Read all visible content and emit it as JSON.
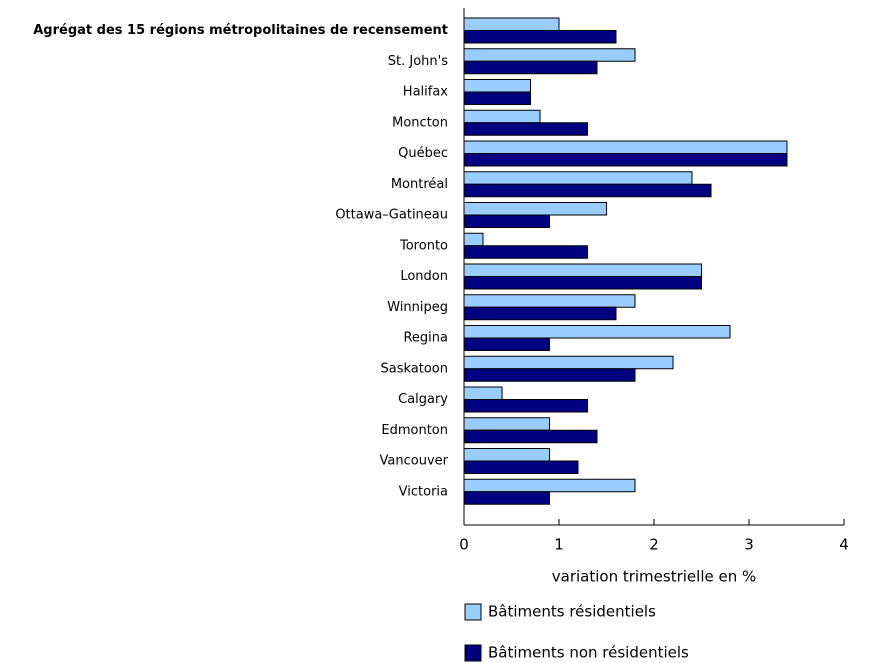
{
  "chart_data": {
    "type": "bar",
    "orientation": "horizontal",
    "x_label": "variation trimestrielle en %",
    "categories": [
      "Agrégat des 15 régions métropolitaines de recensement",
      "St. John's",
      "Halifax",
      "Moncton",
      "Québec",
      "Montréal",
      "Ottawa–Gatineau",
      "Toronto",
      "London",
      "Winnipeg",
      "Regina",
      "Saskatoon",
      "Calgary",
      "Edmonton",
      "Vancouver",
      "Victoria"
    ],
    "series": [
      {
        "name": "Bâtiments résidentiels",
        "color": "#99ccff",
        "values": [
          1.0,
          1.8,
          0.7,
          0.8,
          3.4,
          2.4,
          1.5,
          0.2,
          2.5,
          1.8,
          2.8,
          2.2,
          0.4,
          0.9,
          0.9,
          1.8
        ]
      },
      {
        "name": "Bâtiments non résidentiels",
        "color": "#000080",
        "values": [
          1.6,
          1.4,
          0.7,
          1.3,
          3.4,
          2.6,
          0.9,
          1.3,
          2.5,
          1.6,
          0.9,
          1.8,
          1.3,
          1.4,
          1.2,
          0.9
        ]
      }
    ],
    "xlim": [
      0,
      4
    ],
    "xticks": [
      0,
      1,
      2,
      3,
      4
    ]
  }
}
